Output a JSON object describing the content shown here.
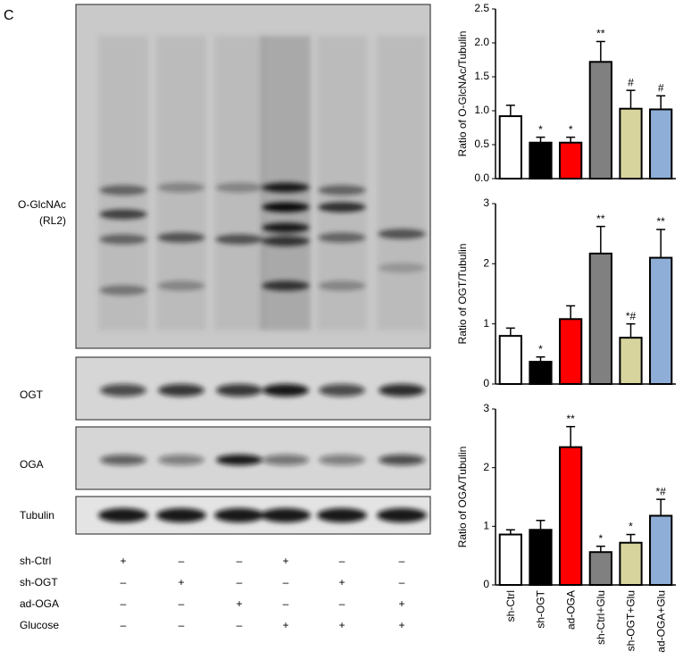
{
  "panel_label": "C",
  "blot_labels": [
    "O-GlcNAc",
    "(RL2)",
    "OGT",
    "OGA",
    "Tubulin"
  ],
  "treatments": [
    {
      "label": "sh-Ctrl",
      "marks": [
        "+",
        "–",
        "–",
        "+",
        "–",
        "–"
      ]
    },
    {
      "label": "sh-OGT",
      "marks": [
        "–",
        "+",
        "–",
        "–",
        "+",
        "–"
      ]
    },
    {
      "label": "ad-OGA",
      "marks": [
        "–",
        "–",
        "+",
        "–",
        "–",
        "+"
      ]
    },
    {
      "label": "Glucose",
      "marks": [
        "–",
        "–",
        "–",
        "+",
        "+",
        "+"
      ]
    }
  ],
  "chart_data": [
    {
      "type": "bar",
      "ylabel": "Ratio of O-GlcNAc/Tubulin",
      "ylim": [
        0,
        2.5
      ],
      "yticks": [
        {
          "value": 0,
          "label": "0.0"
        },
        0.5,
        {
          "value": 1,
          "label": "1.0"
        },
        1.5,
        {
          "value": 2,
          "label": "2.0"
        },
        2.5
      ],
      "values": [
        0.92,
        0.53,
        0.53,
        1.72,
        1.03,
        1.02
      ],
      "errors": [
        0.16,
        0.08,
        0.08,
        0.3,
        0.27,
        0.2
      ],
      "annotations": [
        null,
        "*",
        "*",
        "**",
        "#",
        "#"
      ],
      "colors": [
        "#ffffff",
        "#000000",
        "#ff0000",
        "#808080",
        "#d8d49e",
        "#8eaed8"
      ]
    },
    {
      "type": "bar",
      "ylabel": "Ratio of OGT/Tubulin",
      "ylim": [
        0,
        3
      ],
      "yticks": [
        0,
        1,
        2,
        3
      ],
      "values": [
        0.8,
        0.37,
        1.08,
        2.17,
        0.77,
        2.1
      ],
      "errors": [
        0.13,
        0.08,
        0.22,
        0.45,
        0.23,
        0.47
      ],
      "annotations": [
        null,
        "*",
        null,
        "**",
        "*#",
        "**"
      ],
      "colors": [
        "#ffffff",
        "#000000",
        "#ff0000",
        "#808080",
        "#d8d49e",
        "#8eaed8"
      ]
    },
    {
      "type": "bar",
      "ylabel": "Ratio of OGA/Tubulin",
      "ylim": [
        0,
        3
      ],
      "yticks": [
        0,
        1,
        2,
        3
      ],
      "categories": [
        "sh-Ctrl",
        "sh-OGT",
        "ad-OGA",
        "sh-Ctrl+Glu",
        "sh-OGT+Glu",
        "ad-OGA+Glu"
      ],
      "values": [
        0.86,
        0.94,
        2.35,
        0.56,
        0.72,
        1.18
      ],
      "errors": [
        0.08,
        0.16,
        0.35,
        0.1,
        0.14,
        0.28
      ],
      "annotations": [
        null,
        null,
        "**",
        "*",
        "*",
        "*#"
      ],
      "colors": [
        "#ffffff",
        "#000000",
        "#ff0000",
        "#808080",
        "#d8d49e",
        "#8eaed8"
      ]
    }
  ]
}
